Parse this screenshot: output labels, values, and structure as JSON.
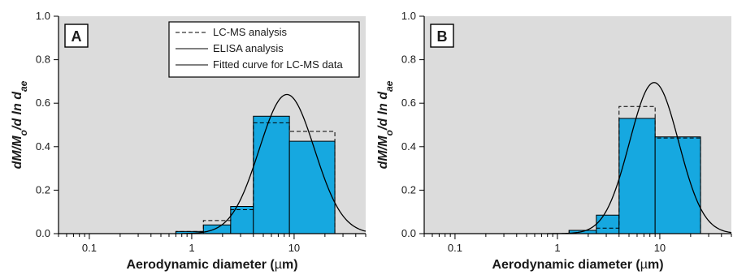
{
  "figure": {
    "colors": {
      "plot_background": "#dcdcdc",
      "bar_fill": "#16a8e0",
      "bar_stroke": "#000000",
      "curve": "#000000",
      "dashed": "#000000"
    }
  },
  "chart_data": [
    {
      "type": "bar",
      "panel_label": "A",
      "xlabel_main": "Aerodynamic diameter (",
      "xlabel_mu": "µ",
      "xlabel_unit": "m)",
      "ylabel_main": "dM/M",
      "ylabel_sub0": "o",
      "ylabel_mid": "/d ln d",
      "ylabel_sub1": "ae",
      "x_scale": "log",
      "xlim": [
        0.05,
        50
      ],
      "ylim": [
        0,
        1.0
      ],
      "yticks": [
        0.0,
        0.2,
        0.4,
        0.6,
        0.8,
        1.0
      ],
      "ytick_labels": [
        "0.0",
        "0.2",
        "0.4",
        "0.6",
        "0.8",
        "1.0"
      ],
      "xticks": [
        0.1,
        1,
        10
      ],
      "xtick_labels": [
        "0.1",
        "1",
        "10"
      ],
      "grid": false,
      "legend_position": "top-right",
      "legend": [
        {
          "label": "LC-MS analysis",
          "style": "dashed"
        },
        {
          "label": "ELISA analysis",
          "style": "solid"
        },
        {
          "label": "Fitted curve for LC-MS data",
          "style": "solid"
        }
      ],
      "bins": [
        {
          "x0": 0.7,
          "x1": 1.3,
          "elisa": 0.01,
          "lcms": 0.01
        },
        {
          "x0": 1.3,
          "x1": 2.4,
          "elisa": 0.04,
          "lcms": 0.06
        },
        {
          "x0": 2.4,
          "x1": 4.0,
          "elisa": 0.125,
          "lcms": 0.11
        },
        {
          "x0": 4.0,
          "x1": 9.0,
          "elisa": 0.54,
          "lcms": 0.51
        },
        {
          "x0": 9.0,
          "x1": 25.0,
          "elisa": 0.425,
          "lcms": 0.47
        }
      ],
      "fitted_curve": {
        "peak_x": 8.5,
        "peak_y": 0.64,
        "log_sigma": 0.27
      }
    },
    {
      "type": "bar",
      "panel_label": "B",
      "xlabel_main": "Aerodynamic diameter (",
      "xlabel_mu": "µ",
      "xlabel_unit": "m)",
      "ylabel_main": "dM/M",
      "ylabel_sub0": "o",
      "ylabel_mid": "/d ln d",
      "ylabel_sub1": "ae",
      "x_scale": "log",
      "xlim": [
        0.05,
        50
      ],
      "ylim": [
        0,
        1.0
      ],
      "yticks": [
        0.0,
        0.2,
        0.4,
        0.6,
        0.8,
        1.0
      ],
      "ytick_labels": [
        "0.0",
        "0.2",
        "0.4",
        "0.6",
        "0.8",
        "1.0"
      ],
      "xticks": [
        0.1,
        1,
        10
      ],
      "xtick_labels": [
        "0.1",
        "1",
        "10"
      ],
      "grid": false,
      "bins": [
        {
          "x0": 1.3,
          "x1": 2.4,
          "elisa": 0.015,
          "lcms": 0.015
        },
        {
          "x0": 2.4,
          "x1": 4.0,
          "elisa": 0.085,
          "lcms": 0.025
        },
        {
          "x0": 4.0,
          "x1": 9.0,
          "elisa": 0.53,
          "lcms": 0.585
        },
        {
          "x0": 9.0,
          "x1": 25.0,
          "elisa": 0.445,
          "lcms": 0.44
        }
      ],
      "fitted_curve": {
        "peak_x": 8.8,
        "peak_y": 0.695,
        "log_sigma": 0.24
      }
    }
  ]
}
